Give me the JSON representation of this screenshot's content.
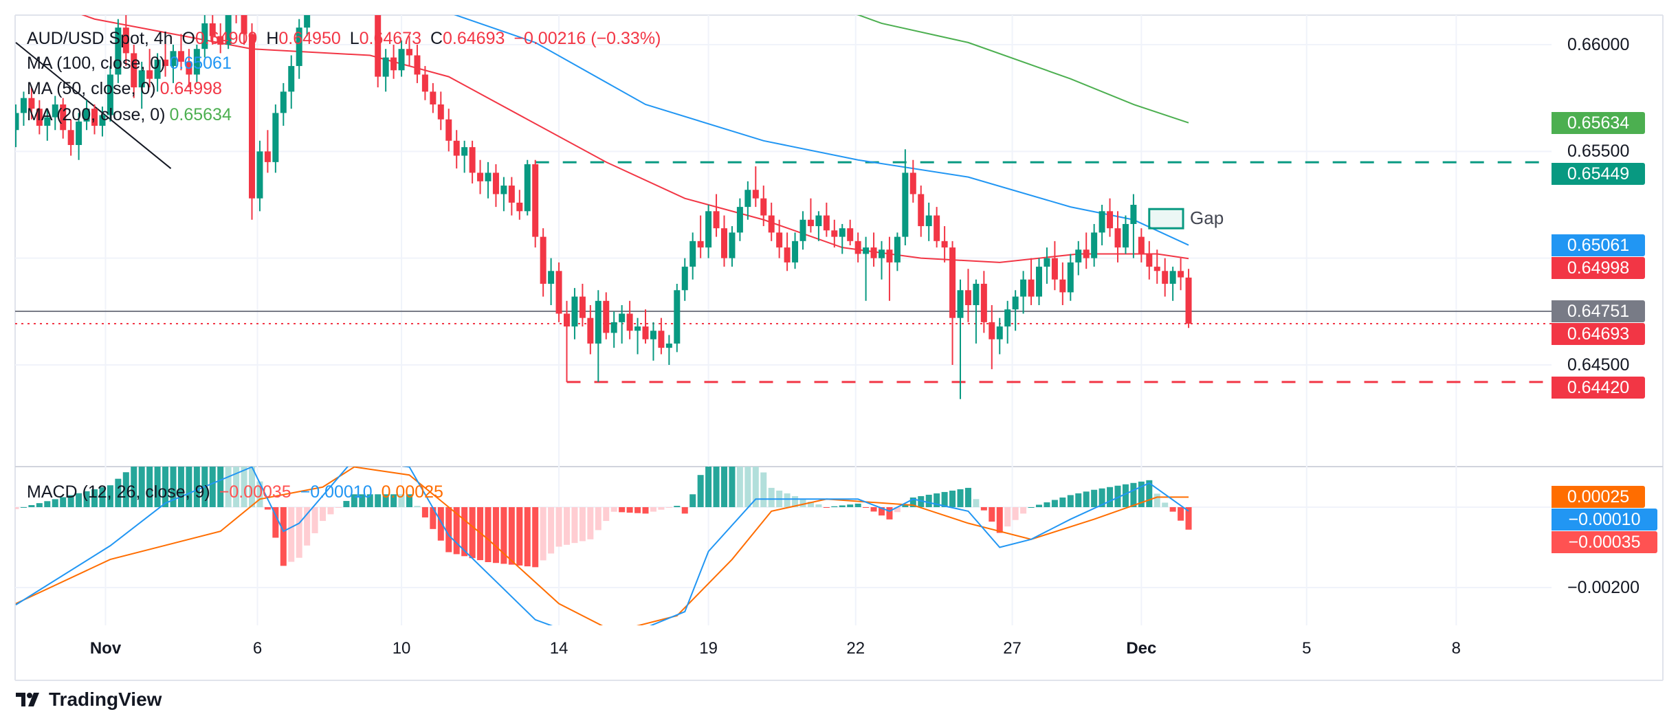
{
  "legend": {
    "symbol": "AUD/USD Spot, 4h",
    "o_label": "O",
    "o": "0.64909",
    "h_label": "H",
    "h": "0.64950",
    "l_label": "L",
    "l": "0.64673",
    "c_label": "C",
    "c": "0.64693",
    "change": "−0.00216 (−0.33%)",
    "ma100_label": "MA (100, close, 0)",
    "ma100": "0.65061",
    "ma50_label": "MA (50, close, 0)",
    "ma50": "0.64998",
    "ma200_label": "MA (200, close, 0)",
    "ma200": "0.65634",
    "macd_label": "MACD (12, 26, close, 9)",
    "macd_hist": "−0.00035",
    "macd_line": "−0.00010",
    "macd_signal": "0.00025"
  },
  "branding": {
    "name": "TradingView"
  },
  "colors": {
    "up": "#089981",
    "down": "#f23645",
    "ma50": "#f23645",
    "ma100": "#2196f3",
    "ma200": "#4caf50",
    "macd": "#2196f3",
    "signal": "#ff6d00",
    "grid": "#f0f3fa"
  },
  "chart_data": {
    "type": "candlestick",
    "title": "AUD/USD Spot, 4h",
    "x_ticks": [
      {
        "label": "Nov",
        "bar": 11.4
      },
      {
        "label": "6",
        "bar": 30.7
      },
      {
        "label": "10",
        "bar": 49
      },
      {
        "label": "14",
        "bar": 69
      },
      {
        "label": "19",
        "bar": 88
      },
      {
        "label": "22",
        "bar": 106.7
      },
      {
        "label": "27",
        "bar": 126.6
      },
      {
        "label": "Dec",
        "bar": 143
      },
      {
        "label": "5",
        "bar": 164
      },
      {
        "label": "8",
        "bar": 183
      }
    ],
    "y_ticks": [
      {
        "value": 0.66,
        "label": "0.66000"
      },
      {
        "value": 0.655,
        "label": "0.65500"
      },
      {
        "value": 0.65,
        "label": ""
      },
      {
        "value": 0.645,
        "label": "0.64500"
      }
    ],
    "ylim": [
      0.6405,
      0.6621
    ],
    "candles_ohlc": [
      [
        0.656,
        0.6572,
        0.6552,
        0.6568
      ],
      [
        0.6568,
        0.6578,
        0.6562,
        0.6575
      ],
      [
        0.6575,
        0.658,
        0.6565,
        0.657
      ],
      [
        0.657,
        0.6574,
        0.6558,
        0.6562
      ],
      [
        0.6562,
        0.657,
        0.6555,
        0.6566
      ],
      [
        0.6566,
        0.6576,
        0.656,
        0.6572
      ],
      [
        0.6572,
        0.6575,
        0.6556,
        0.656
      ],
      [
        0.656,
        0.6565,
        0.6548,
        0.6553
      ],
      [
        0.6553,
        0.6568,
        0.6546,
        0.6564
      ],
      [
        0.6564,
        0.6574,
        0.656,
        0.657
      ],
      [
        0.657,
        0.6572,
        0.6558,
        0.6562
      ],
      [
        0.6562,
        0.6571,
        0.6557,
        0.6567
      ],
      [
        0.6567,
        0.659,
        0.6564,
        0.6586
      ],
      [
        0.6586,
        0.6612,
        0.6582,
        0.6608
      ],
      [
        0.6608,
        0.6625,
        0.659,
        0.6596
      ],
      [
        0.6596,
        0.66,
        0.6575,
        0.658
      ],
      [
        0.658,
        0.6592,
        0.657,
        0.6588
      ],
      [
        0.6588,
        0.6598,
        0.658,
        0.6584
      ],
      [
        0.6584,
        0.6596,
        0.6578,
        0.6593
      ],
      [
        0.6593,
        0.6602,
        0.6585,
        0.659
      ],
      [
        0.659,
        0.66,
        0.6582,
        0.6597
      ],
      [
        0.6597,
        0.6605,
        0.6588,
        0.6592
      ],
      [
        0.6592,
        0.6598,
        0.658,
        0.6586
      ],
      [
        0.6586,
        0.66,
        0.6582,
        0.6598
      ],
      [
        0.6598,
        0.6615,
        0.6594,
        0.661
      ],
      [
        0.661,
        0.6618,
        0.66,
        0.6604
      ],
      [
        0.6604,
        0.661,
        0.6596,
        0.66
      ],
      [
        0.66,
        0.6625,
        0.6598,
        0.662
      ],
      [
        0.662,
        0.663,
        0.661,
        0.6614
      ],
      [
        0.6614,
        0.6622,
        0.66,
        0.6605
      ],
      [
        0.6605,
        0.661,
        0.6518,
        0.6528
      ],
      [
        0.6528,
        0.6555,
        0.6522,
        0.655
      ],
      [
        0.655,
        0.656,
        0.654,
        0.6545
      ],
      [
        0.6545,
        0.6572,
        0.654,
        0.6568
      ],
      [
        0.6568,
        0.6582,
        0.6562,
        0.6578
      ],
      [
        0.6578,
        0.6595,
        0.657,
        0.659
      ],
      [
        0.659,
        0.6612,
        0.6584,
        0.6608
      ],
      [
        0.6608,
        0.664,
        0.6604,
        0.6635
      ],
      [
        0.6635,
        0.665,
        0.6625,
        0.6645
      ],
      [
        0.6645,
        0.6655,
        0.6632,
        0.664
      ],
      [
        0.664,
        0.6648,
        0.6628,
        0.6636
      ],
      [
        0.6636,
        0.6652,
        0.663,
        0.6648
      ],
      [
        0.6648,
        0.666,
        0.6638,
        0.6642
      ],
      [
        0.6642,
        0.665,
        0.663,
        0.6634
      ],
      [
        0.6634,
        0.6645,
        0.6625,
        0.6638
      ],
      [
        0.6638,
        0.6642,
        0.6618,
        0.6625
      ],
      [
        0.6625,
        0.6628,
        0.658,
        0.6585
      ],
      [
        0.6585,
        0.6598,
        0.6578,
        0.6594
      ],
      [
        0.6594,
        0.66,
        0.6584,
        0.6588
      ],
      [
        0.6588,
        0.6602,
        0.6585,
        0.6598
      ],
      [
        0.6598,
        0.6604,
        0.659,
        0.6595
      ],
      [
        0.6595,
        0.66,
        0.6582,
        0.6586
      ],
      [
        0.6586,
        0.659,
        0.6574,
        0.6578
      ],
      [
        0.6578,
        0.6582,
        0.6568,
        0.6572
      ],
      [
        0.6572,
        0.6578,
        0.656,
        0.6565
      ],
      [
        0.6565,
        0.657,
        0.655,
        0.6555
      ],
      [
        0.6555,
        0.656,
        0.6542,
        0.6548
      ],
      [
        0.6548,
        0.6555,
        0.654,
        0.6552
      ],
      [
        0.6552,
        0.6555,
        0.6535,
        0.654
      ],
      [
        0.654,
        0.6546,
        0.653,
        0.6536
      ],
      [
        0.6536,
        0.6545,
        0.6528,
        0.654
      ],
      [
        0.654,
        0.6544,
        0.6524,
        0.653
      ],
      [
        0.653,
        0.6538,
        0.6522,
        0.6534
      ],
      [
        0.6534,
        0.6538,
        0.652,
        0.6526
      ],
      [
        0.6526,
        0.6532,
        0.6518,
        0.6522
      ],
      [
        0.6522,
        0.6546,
        0.652,
        0.6544
      ],
      [
        0.6544,
        0.6546,
        0.6505,
        0.651
      ],
      [
        0.651,
        0.6514,
        0.6482,
        0.6488
      ],
      [
        0.6488,
        0.65,
        0.6478,
        0.6494
      ],
      [
        0.6494,
        0.6498,
        0.647,
        0.6474
      ],
      [
        0.6474,
        0.648,
        0.6442,
        0.6468
      ],
      [
        0.6468,
        0.6486,
        0.6462,
        0.6482
      ],
      [
        0.6482,
        0.6488,
        0.6468,
        0.6472
      ],
      [
        0.6472,
        0.6478,
        0.6455,
        0.646
      ],
      [
        0.646,
        0.6485,
        0.6442,
        0.648
      ],
      [
        0.648,
        0.6484,
        0.6462,
        0.6465
      ],
      [
        0.6465,
        0.6475,
        0.6458,
        0.647
      ],
      [
        0.647,
        0.6478,
        0.646,
        0.6474
      ],
      [
        0.6474,
        0.648,
        0.6462,
        0.6466
      ],
      [
        0.6466,
        0.6472,
        0.6455,
        0.6468
      ],
      [
        0.6468,
        0.6476,
        0.646,
        0.6462
      ],
      [
        0.6462,
        0.647,
        0.6452,
        0.6466
      ],
      [
        0.6466,
        0.6472,
        0.6455,
        0.6458
      ],
      [
        0.6458,
        0.6464,
        0.645,
        0.646
      ],
      [
        0.646,
        0.6488,
        0.6456,
        0.6485
      ],
      [
        0.6485,
        0.65,
        0.648,
        0.6496
      ],
      [
        0.6496,
        0.6512,
        0.649,
        0.6508
      ],
      [
        0.6508,
        0.652,
        0.65,
        0.6505
      ],
      [
        0.6505,
        0.6525,
        0.65,
        0.6522
      ],
      [
        0.6522,
        0.653,
        0.651,
        0.6514
      ],
      [
        0.6514,
        0.652,
        0.6496,
        0.65
      ],
      [
        0.65,
        0.6515,
        0.6496,
        0.6512
      ],
      [
        0.6512,
        0.6528,
        0.6508,
        0.6524
      ],
      [
        0.6524,
        0.6536,
        0.6518,
        0.6532
      ],
      [
        0.6532,
        0.6543,
        0.6524,
        0.6528
      ],
      [
        0.6528,
        0.6534,
        0.6515,
        0.652
      ],
      [
        0.652,
        0.6526,
        0.6508,
        0.6512
      ],
      [
        0.6512,
        0.6518,
        0.65,
        0.6505
      ],
      [
        0.6505,
        0.6512,
        0.6494,
        0.6498
      ],
      [
        0.6498,
        0.6512,
        0.6495,
        0.6508
      ],
      [
        0.6508,
        0.6522,
        0.6504,
        0.6518
      ],
      [
        0.6518,
        0.6528,
        0.6512,
        0.6515
      ],
      [
        0.6515,
        0.6522,
        0.6508,
        0.652
      ],
      [
        0.652,
        0.6526,
        0.651,
        0.6513
      ],
      [
        0.6513,
        0.6518,
        0.6505,
        0.651
      ],
      [
        0.651,
        0.6516,
        0.6502,
        0.6514
      ],
      [
        0.6514,
        0.6518,
        0.6506,
        0.6508
      ],
      [
        0.6508,
        0.6512,
        0.6498,
        0.6502
      ],
      [
        0.6502,
        0.651,
        0.648,
        0.6505
      ],
      [
        0.6505,
        0.6512,
        0.6496,
        0.65
      ],
      [
        0.65,
        0.6508,
        0.649,
        0.6504
      ],
      [
        0.6504,
        0.651,
        0.648,
        0.6498
      ],
      [
        0.6498,
        0.6512,
        0.6494,
        0.651
      ],
      [
        0.651,
        0.6551,
        0.6506,
        0.654
      ],
      [
        0.654,
        0.6546,
        0.6526,
        0.653
      ],
      [
        0.653,
        0.6534,
        0.651,
        0.6515
      ],
      [
        0.6515,
        0.6526,
        0.6508,
        0.652
      ],
      [
        0.652,
        0.6524,
        0.6505,
        0.6508
      ],
      [
        0.6508,
        0.6515,
        0.6498,
        0.6505
      ],
      [
        0.6505,
        0.6508,
        0.645,
        0.6472
      ],
      [
        0.6472,
        0.649,
        0.6434,
        0.6485
      ],
      [
        0.6485,
        0.6495,
        0.647,
        0.6478
      ],
      [
        0.6478,
        0.649,
        0.646,
        0.6488
      ],
      [
        0.6488,
        0.6494,
        0.6465,
        0.647
      ],
      [
        0.647,
        0.6478,
        0.6448,
        0.6462
      ],
      [
        0.6462,
        0.6472,
        0.6455,
        0.6468
      ],
      [
        0.6468,
        0.648,
        0.646,
        0.6476
      ],
      [
        0.6476,
        0.6485,
        0.6466,
        0.6482
      ],
      [
        0.6482,
        0.6494,
        0.6474,
        0.649
      ],
      [
        0.649,
        0.65,
        0.6478,
        0.6482
      ],
      [
        0.6482,
        0.65,
        0.6478,
        0.6496
      ],
      [
        0.6496,
        0.6505,
        0.6488,
        0.65
      ],
      [
        0.65,
        0.6508,
        0.6485,
        0.649
      ],
      [
        0.649,
        0.6498,
        0.6478,
        0.6484
      ],
      [
        0.6484,
        0.6502,
        0.648,
        0.6498
      ],
      [
        0.6498,
        0.6508,
        0.6492,
        0.6504
      ],
      [
        0.6504,
        0.6512,
        0.6495,
        0.65
      ],
      [
        0.65,
        0.6516,
        0.6496,
        0.6512
      ],
      [
        0.6512,
        0.6525,
        0.6506,
        0.6522
      ],
      [
        0.6522,
        0.6528,
        0.651,
        0.6514
      ],
      [
        0.6514,
        0.6522,
        0.6498,
        0.6505
      ],
      [
        0.6505,
        0.652,
        0.6502,
        0.6516
      ],
      [
        0.6516,
        0.653,
        0.65,
        0.6525
      ],
      [
        0.651,
        0.6514,
        0.6498,
        0.6502
      ],
      [
        0.6502,
        0.6508,
        0.649,
        0.6496
      ],
      [
        0.6496,
        0.6504,
        0.6488,
        0.6494
      ],
      [
        0.6494,
        0.65,
        0.6482,
        0.6488
      ],
      [
        0.6488,
        0.6496,
        0.648,
        0.6494
      ],
      [
        0.6494,
        0.65,
        0.6485,
        0.6491
      ],
      [
        0.64909,
        0.6495,
        0.64673,
        0.64693
      ]
    ],
    "ma50": [
      [
        0,
        0.6625
      ],
      [
        10,
        0.6612
      ],
      [
        20,
        0.6605
      ],
      [
        30,
        0.6598
      ],
      [
        45,
        0.6595
      ],
      [
        55,
        0.6585
      ],
      [
        65,
        0.6565
      ],
      [
        75,
        0.6545
      ],
      [
        85,
        0.6528
      ],
      [
        95,
        0.6518
      ],
      [
        105,
        0.6505
      ],
      [
        115,
        0.65
      ],
      [
        125,
        0.6498
      ],
      [
        135,
        0.6502
      ],
      [
        145,
        0.6502
      ],
      [
        149,
        0.64998
      ]
    ],
    "ma100": [
      [
        46,
        0.6625
      ],
      [
        55,
        0.6615
      ],
      [
        66,
        0.6601
      ],
      [
        80,
        0.6572
      ],
      [
        95,
        0.6555
      ],
      [
        107,
        0.6546
      ],
      [
        121,
        0.6538
      ],
      [
        134,
        0.6524
      ],
      [
        142,
        0.6518
      ],
      [
        149,
        0.65061
      ]
    ],
    "ma200": [
      [
        101,
        0.6622
      ],
      [
        110,
        0.661
      ],
      [
        121,
        0.6601
      ],
      [
        134,
        0.6584
      ],
      [
        142,
        0.6572
      ],
      [
        149,
        0.65634
      ]
    ],
    "trendline": [
      [
        0,
        0.6601
      ],
      [
        19.7,
        0.6542
      ]
    ],
    "resistance": {
      "value": 0.65449,
      "from_bar": 66
    },
    "support": {
      "value": 0.6442,
      "from_bar": 70
    },
    "gap": {
      "label": "Gap",
      "from_bar": 144,
      "to_bar": 148.3,
      "top": 0.6523,
      "bottom": 0.6514
    },
    "last_price_line": 0.64693,
    "prev_close_line": 0.64751,
    "price_badges": [
      {
        "label": "0.65634",
        "value": 0.65634,
        "color": "#4caf50"
      },
      {
        "label": "0.65449",
        "value": 0.65449,
        "color": "#089981"
      },
      {
        "label": "0.65061",
        "value": 0.65061,
        "color": "#2196f3"
      },
      {
        "label": "0.64998",
        "value": 0.64998,
        "color": "#f23645"
      },
      {
        "label": "0.64751",
        "value": 0.64751,
        "color": "#787b86"
      },
      {
        "label": "0.64693",
        "value": 0.64693,
        "color": "#f23645"
      },
      {
        "label": "0.64420",
        "value": 0.6442,
        "color": "#f23645"
      }
    ],
    "macd": {
      "y_ticks": [
        {
          "value": -0.002,
          "label": "−0.00200"
        }
      ],
      "macd_line": [
        [
          0,
          -0.00243
        ],
        [
          12,
          -0.00096
        ],
        [
          19,
          0.0001
        ],
        [
          30,
          0.001
        ],
        [
          34,
          -0.0006
        ],
        [
          36,
          -0.0004
        ],
        [
          43,
          0.0012
        ],
        [
          50,
          0.001
        ],
        [
          55,
          -0.0007
        ],
        [
          66,
          -0.0028
        ],
        [
          73,
          -0.0033
        ],
        [
          80,
          -0.003
        ],
        [
          85,
          -0.0026
        ],
        [
          88,
          -0.0011
        ],
        [
          94,
          0.0002
        ],
        [
          99,
          0.0002
        ],
        [
          107,
          0.0002
        ],
        [
          111,
          -0.0001
        ],
        [
          114,
          0.0002
        ],
        [
          121,
          -0.0001
        ],
        [
          125,
          -0.001
        ],
        [
          129,
          -0.0008
        ],
        [
          134,
          -0.0003
        ],
        [
          144,
          0.0006
        ],
        [
          149,
          -0.0001
        ]
      ],
      "signal_line": [
        [
          0,
          -0.0024
        ],
        [
          12,
          -0.0013
        ],
        [
          26,
          -0.0006
        ],
        [
          31,
          0.0002
        ],
        [
          39,
          0.0005
        ],
        [
          43,
          0.001
        ],
        [
          50,
          0.0008
        ],
        [
          60,
          -0.0008
        ],
        [
          69,
          -0.0024
        ],
        [
          76,
          -0.0031
        ],
        [
          84,
          -0.0027
        ],
        [
          91,
          -0.0013
        ],
        [
          96,
          -0.0001
        ],
        [
          103,
          0.0002
        ],
        [
          114,
          5e-05
        ],
        [
          121,
          -0.0004
        ],
        [
          129,
          -0.0008
        ],
        [
          137,
          -0.0003
        ],
        [
          145,
          0.00025
        ],
        [
          149,
          0.00025
        ]
      ],
      "badges": [
        {
          "label": "0.00025",
          "value": 0.00025,
          "color": "#ff6d00"
        },
        {
          "label": "−0.00010",
          "value": -0.0001,
          "color": "#2196f3"
        },
        {
          "label": "−0.00035",
          "value": -0.00035,
          "color": "#ff5252"
        }
      ]
    }
  }
}
